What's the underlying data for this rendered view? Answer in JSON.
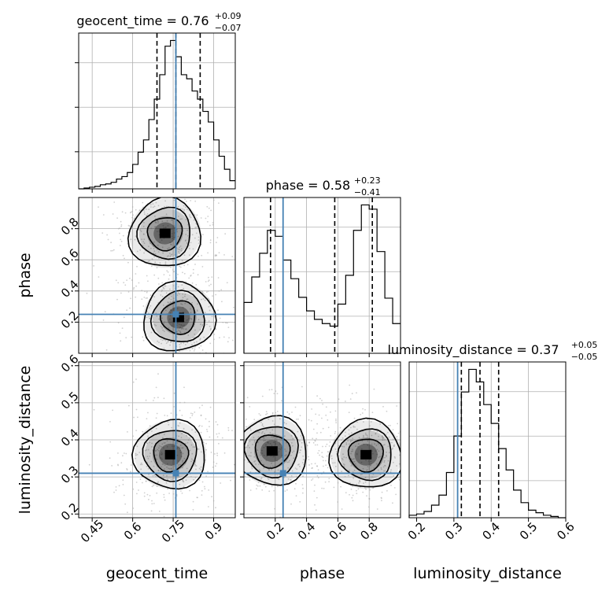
{
  "figure": {
    "type": "corner-plot",
    "parameters": [
      "geocent_time",
      "phase",
      "luminosity_distance"
    ]
  },
  "colors": {
    "truth": "#4682b4",
    "hist": "#000000",
    "grid": "#b0b0b0",
    "scatter": "#a9a9a9"
  },
  "chart_data": [
    {
      "type": "histogram",
      "panel": "geocent_time",
      "title": {
        "main": "geocent_time = 0.76",
        "plus": "+0.09",
        "minus": "−0.07"
      },
      "xlim": [
        0.4,
        0.98
      ],
      "bins_x": [
        0.4,
        0.42,
        0.44,
        0.46,
        0.48,
        0.5,
        0.52,
        0.54,
        0.56,
        0.58,
        0.6,
        0.62,
        0.64,
        0.66,
        0.68,
        0.7,
        0.72,
        0.74,
        0.76,
        0.78,
        0.8,
        0.82,
        0.84,
        0.86,
        0.88,
        0.9,
        0.92,
        0.94,
        0.96,
        0.98
      ],
      "counts": [
        0,
        1,
        2,
        3,
        5,
        6,
        8,
        12,
        15,
        20,
        30,
        45,
        60,
        85,
        110,
        140,
        175,
        182,
        162,
        140,
        135,
        120,
        110,
        95,
        82,
        60,
        40,
        24,
        10
      ],
      "quantile_lines": [
        0.69,
        0.76,
        0.85
      ],
      "truth": 0.76,
      "yticks_shown": true,
      "ytick_labels_shown": false
    },
    {
      "type": "histogram",
      "panel": "phase",
      "title": {
        "main": "phase = 0.58",
        "plus": "+0.23",
        "minus": "−0.41"
      },
      "xlim": [
        0.0,
        1.0
      ],
      "bins_x": [
        0.0,
        0.05,
        0.1,
        0.15,
        0.2,
        0.25,
        0.3,
        0.35,
        0.4,
        0.45,
        0.5,
        0.55,
        0.6,
        0.65,
        0.7,
        0.75,
        0.8,
        0.85,
        0.9,
        0.95,
        1.0
      ],
      "counts": [
        60,
        90,
        118,
        145,
        138,
        110,
        88,
        66,
        50,
        40,
        35,
        32,
        58,
        92,
        145,
        175,
        170,
        120,
        65,
        35
      ],
      "quantile_lines": [
        0.17,
        0.58,
        0.82
      ],
      "truth": 0.25,
      "yticks_shown": false
    },
    {
      "type": "histogram",
      "panel": "luminosity_distance",
      "title": {
        "main": "luminosity_distance = 0.37",
        "plus": "+0.05",
        "minus": "−0.05"
      },
      "xlim": [
        0.18,
        0.6
      ],
      "xticks": [
        0.2,
        0.3,
        0.4,
        0.5,
        0.6
      ],
      "xlabel": "luminosity_distance",
      "bins_x": [
        0.18,
        0.2,
        0.22,
        0.24,
        0.26,
        0.28,
        0.3,
        0.32,
        0.34,
        0.36,
        0.38,
        0.4,
        0.42,
        0.44,
        0.46,
        0.48,
        0.5,
        0.52,
        0.54,
        0.56,
        0.58,
        0.6
      ],
      "counts": [
        2,
        3,
        5,
        10,
        18,
        36,
        65,
        100,
        118,
        108,
        90,
        75,
        55,
        38,
        22,
        12,
        6,
        4,
        2,
        1,
        0
      ],
      "quantile_lines": [
        0.32,
        0.37,
        0.42
      ],
      "truth": 0.31,
      "yticks_shown": false
    },
    {
      "type": "2d-density",
      "panel": "geocent_time vs phase",
      "xlim": [
        0.4,
        0.98
      ],
      "ylim": [
        0.0,
        1.0
      ],
      "ylabel": "phase",
      "yticks": [
        0.2,
        0.4,
        0.6,
        0.8
      ],
      "truth": {
        "x": 0.76,
        "y": 0.25
      },
      "modes": [
        {
          "x": 0.72,
          "y": 0.77
        },
        {
          "x": 0.77,
          "y": 0.23
        }
      ]
    },
    {
      "type": "2d-density",
      "panel": "geocent_time vs luminosity_distance",
      "xlim": [
        0.4,
        0.98
      ],
      "ylim": [
        0.19,
        0.61
      ],
      "xticks": [
        0.45,
        0.6,
        0.75,
        0.9
      ],
      "xlabel": "geocent_time",
      "ylabel": "luminosity_distance",
      "yticks": [
        0.2,
        0.3,
        0.4,
        0.5,
        0.6
      ],
      "truth": {
        "x": 0.76,
        "y": 0.31
      },
      "modes": [
        {
          "x": 0.74,
          "y": 0.36
        }
      ]
    },
    {
      "type": "2d-density",
      "panel": "phase vs luminosity_distance",
      "xlim": [
        0.0,
        1.0
      ],
      "ylim": [
        0.19,
        0.61
      ],
      "xticks": [
        0.2,
        0.4,
        0.6,
        0.8
      ],
      "xlabel": "phase",
      "truth": {
        "x": 0.25,
        "y": 0.31
      },
      "modes": [
        {
          "x": 0.18,
          "y": 0.37
        },
        {
          "x": 0.78,
          "y": 0.36
        }
      ]
    }
  ]
}
